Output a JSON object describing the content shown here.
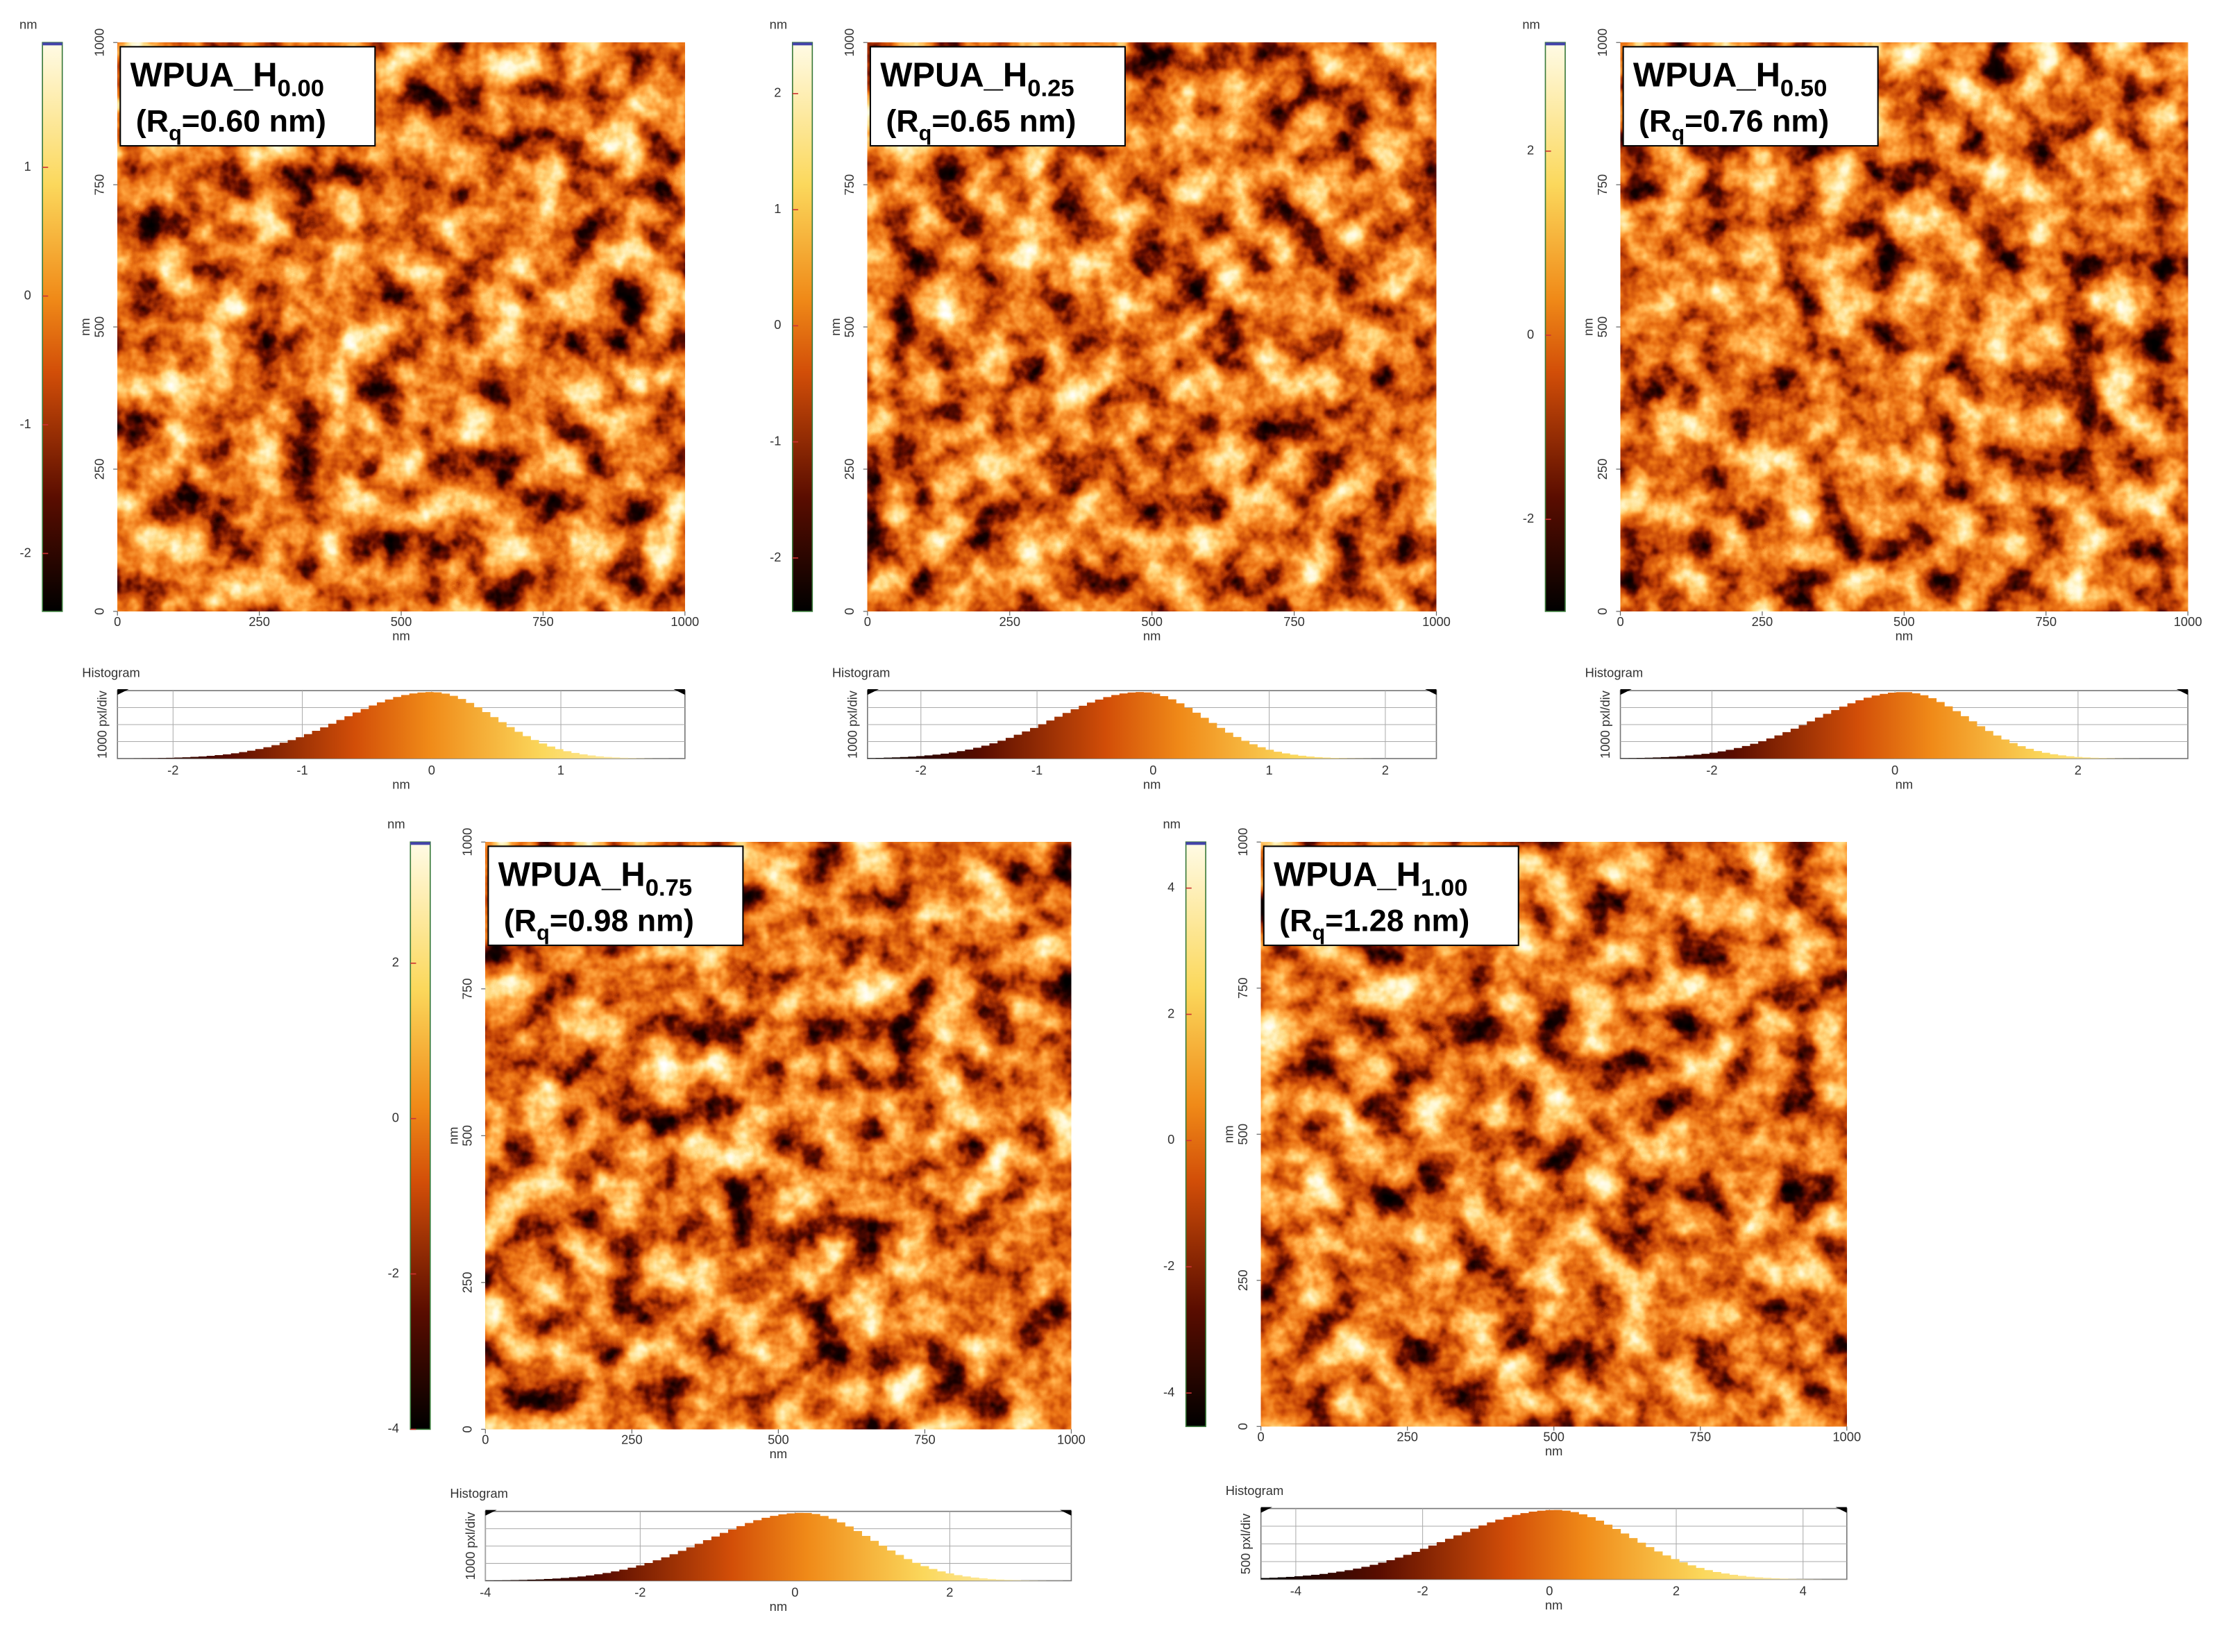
{
  "panels": [
    {
      "title": {
        "main": "WPUA_H",
        "sub": "0.00"
      },
      "rq": {
        "pre": "(R",
        "sub": "q",
        "post": "=0.60 nm)"
      },
      "colorbar": {
        "unit": "nm",
        "lim": [
          -2.45,
          1.97
        ],
        "ticks": [
          -2,
          -1,
          0,
          1
        ]
      },
      "image": {
        "xlabel": "nm",
        "ylabel": "nm",
        "lim": [
          0,
          1000
        ],
        "ticks": [
          0,
          250,
          500,
          750,
          1000
        ]
      },
      "histogram": {
        "label": "Histogram",
        "ylabel": "1000 pxl/div",
        "xlabel": "nm",
        "lim": [
          -2.43,
          1.96
        ],
        "ticks": [
          -2,
          -1,
          0,
          1
        ]
      }
    },
    {
      "title": {
        "main": "WPUA_H",
        "sub": "0.25"
      },
      "rq": {
        "pre": "(R",
        "sub": "q",
        "post": "=0.65 nm)"
      },
      "colorbar": {
        "unit": "nm",
        "lim": [
          -2.46,
          2.44
        ],
        "ticks": [
          -2,
          -1,
          0,
          1,
          2
        ]
      },
      "image": {
        "xlabel": "nm",
        "ylabel": "nm",
        "lim": [
          0,
          1000
        ],
        "ticks": [
          0,
          250,
          500,
          750,
          1000
        ]
      },
      "histogram": {
        "label": "Histogram",
        "ylabel": "1000 pxl/div",
        "xlabel": "nm",
        "lim": [
          -2.46,
          2.44
        ],
        "ticks": [
          -2,
          -1,
          0,
          1,
          2
        ]
      }
    },
    {
      "title": {
        "main": "WPUA_H",
        "sub": "0.50"
      },
      "rq": {
        "pre": "(R",
        "sub": "q",
        "post": "=0.76 nm)"
      },
      "colorbar": {
        "unit": "nm",
        "lim": [
          -3.0,
          3.18
        ],
        "ticks": [
          -2,
          0,
          2
        ]
      },
      "image": {
        "xlabel": "nm",
        "ylabel": "nm",
        "lim": [
          0,
          1000
        ],
        "ticks": [
          0,
          250,
          500,
          750,
          1000
        ]
      },
      "histogram": {
        "label": "Histogram",
        "ylabel": "1000 pxl/div",
        "xlabel": "nm",
        "lim": [
          -3.0,
          3.2
        ],
        "ticks": [
          -2,
          0,
          2
        ]
      }
    },
    {
      "title": {
        "main": "WPUA_H",
        "sub": "0.75"
      },
      "rq": {
        "pre": "(R",
        "sub": "q",
        "post": "=0.98 nm)"
      },
      "colorbar": {
        "unit": "nm",
        "lim": [
          -4.0,
          3.56
        ],
        "ticks": [
          -4,
          -2,
          0,
          2
        ]
      },
      "image": {
        "xlabel": "nm",
        "ylabel": "nm",
        "lim": [
          0,
          1000
        ],
        "ticks": [
          0,
          250,
          500,
          750,
          1000
        ]
      },
      "histogram": {
        "label": "Histogram",
        "ylabel": "1000 pxl/div",
        "xlabel": "nm",
        "lim": [
          -4.0,
          3.57
        ],
        "ticks": [
          -4,
          -2,
          0,
          2
        ]
      }
    },
    {
      "title": {
        "main": "WPUA_H",
        "sub": "1.00"
      },
      "rq": {
        "pre": "(R",
        "sub": "q",
        "post": "=1.28 nm)"
      },
      "colorbar": {
        "unit": "nm",
        "lim": [
          -4.53,
          4.73
        ],
        "ticks": [
          -4,
          -2,
          0,
          2,
          4
        ]
      },
      "image": {
        "xlabel": "nm",
        "ylabel": "nm",
        "lim": [
          0,
          1000
        ],
        "ticks": [
          0,
          250,
          500,
          750,
          1000
        ]
      },
      "histogram": {
        "label": "Histogram",
        "ylabel": "500 pxl/div",
        "xlabel": "nm",
        "lim": [
          -4.55,
          4.69
        ],
        "ticks": [
          -4,
          -2,
          0,
          2,
          4
        ]
      }
    }
  ]
}
